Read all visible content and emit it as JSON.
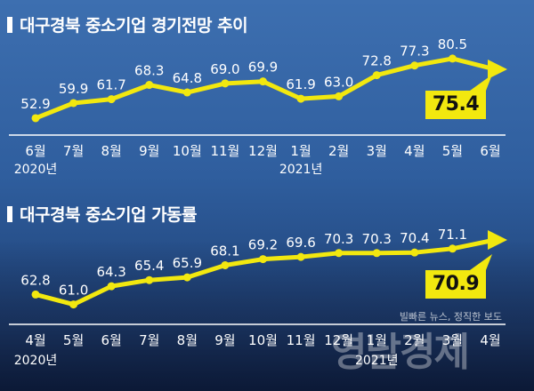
{
  "chart_data": [
    {
      "type": "line",
      "title": "대구경북 중소기업 경기전망 추이",
      "categories": [
        "6월",
        "7월",
        "8월",
        "9월",
        "10월",
        "11월",
        "12월",
        "1월",
        "2월",
        "3월",
        "4월",
        "5월",
        "6월"
      ],
      "year_labels": [
        {
          "index": 0,
          "label": "2020년"
        },
        {
          "index": 7,
          "label": "2021년"
        }
      ],
      "values": [
        52.9,
        59.9,
        61.7,
        68.3,
        64.8,
        69.0,
        69.9,
        61.9,
        63.0,
        72.8,
        77.3,
        80.5,
        null
      ],
      "labels": [
        "52.9",
        "59.9",
        "61.7",
        "68.3",
        "64.8",
        "69.0",
        "69.9",
        "61.9",
        "63.0",
        "72.8",
        "77.3",
        "80.5"
      ],
      "forecast": "75.4",
      "ylim": [
        50,
        85
      ],
      "line_color": "#f2e80f"
    },
    {
      "type": "line",
      "title": "대구경북 중소기업 가동률",
      "categories": [
        "4월",
        "5월",
        "6월",
        "7월",
        "8월",
        "9월",
        "10월",
        "11월",
        "12월",
        "1월",
        "2월",
        "3월",
        "4월"
      ],
      "year_labels": [
        {
          "index": 0,
          "label": "2020년"
        },
        {
          "index": 9,
          "label": "2021년"
        }
      ],
      "values": [
        62.8,
        61.0,
        64.3,
        65.4,
        65.9,
        68.1,
        69.2,
        69.6,
        70.3,
        70.3,
        70.4,
        71.1,
        null
      ],
      "labels": [
        "62.8",
        "61.0",
        "64.3",
        "65.4",
        "65.9",
        "68.1",
        "69.2",
        "69.6",
        "70.3",
        "70.3",
        "70.4",
        "71.1"
      ],
      "forecast": "70.9",
      "ylim": [
        59,
        73
      ],
      "line_color": "#f2e80f"
    }
  ],
  "watermark": {
    "slogan": "빌빠른 뉴스, 정직한 보도",
    "brand": "영남경제"
  }
}
